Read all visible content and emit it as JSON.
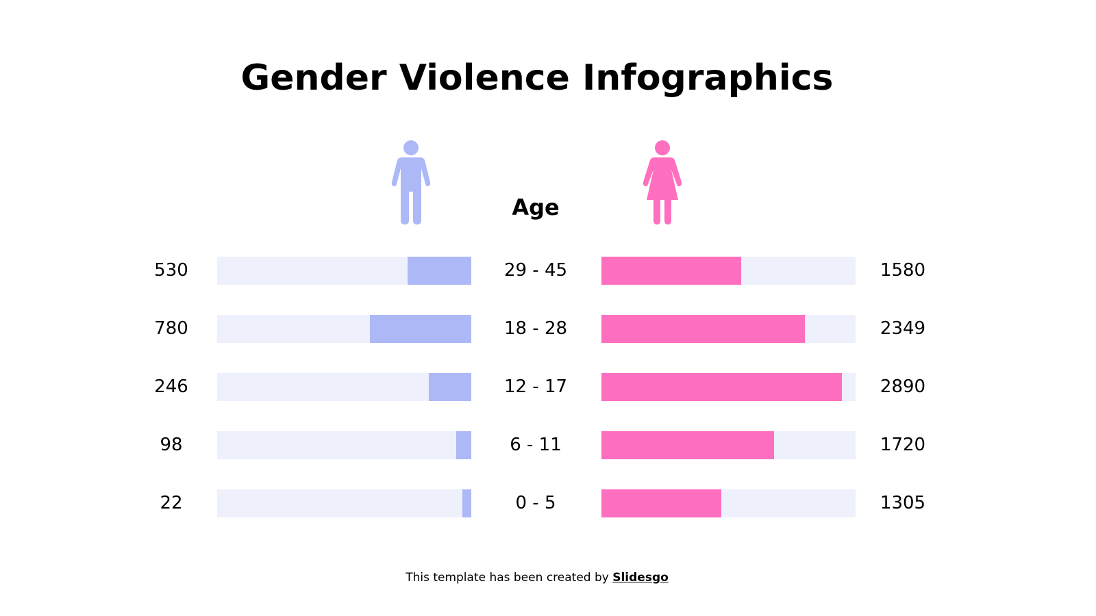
{
  "chart_data": {
    "type": "bar",
    "title": "Gender Violence Infographics",
    "category_header": "Age",
    "categories": [
      "29 - 45",
      "18 - 28",
      "12 - 17",
      "6 - 11",
      "0 - 5"
    ],
    "series": [
      {
        "icon": "male-icon",
        "color": "#adb8f7",
        "values": [
          530,
          780,
          246,
          98,
          22
        ],
        "fill_fraction": [
          0.25,
          0.4,
          0.167,
          0.059,
          0.035
        ]
      },
      {
        "icon": "female-icon",
        "color": "#ff6fc0",
        "values": [
          1580,
          2349,
          2890,
          1720,
          1305
        ],
        "fill_fraction": [
          0.551,
          0.8,
          0.946,
          0.68,
          0.472
        ]
      }
    ],
    "track_color": "#eef0fc"
  },
  "footer": {
    "text": "This template has been created by ",
    "link": "Slidesgo"
  }
}
